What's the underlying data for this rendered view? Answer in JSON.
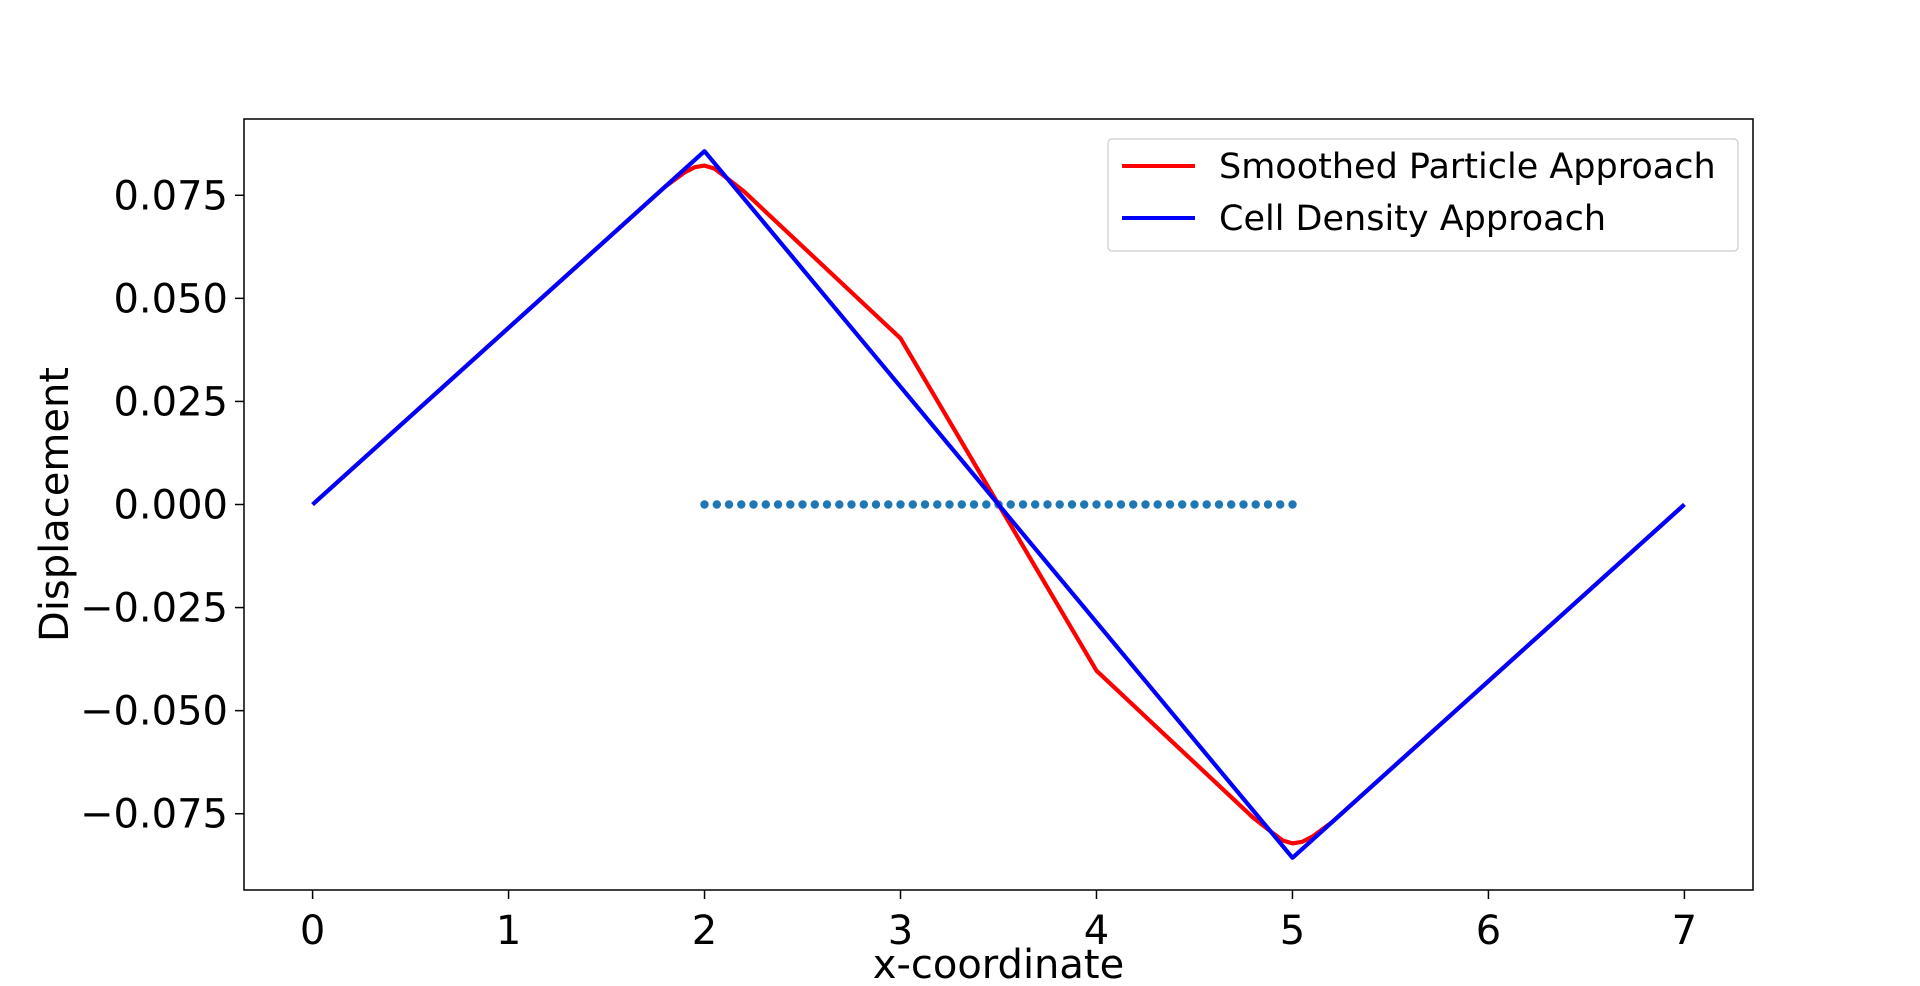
{
  "chart_data": {
    "type": "line",
    "title": "",
    "xlabel": "x-coordinate",
    "ylabel": "Displacement",
    "xlim": [
      -0.35,
      7.35
    ],
    "ylim": [
      -0.0935,
      0.0935
    ],
    "xticks": [
      0,
      1,
      2,
      3,
      4,
      5,
      6,
      7
    ],
    "xtick_labels": [
      "0",
      "1",
      "2",
      "3",
      "4",
      "5",
      "6",
      "7"
    ],
    "yticks": [
      0.075,
      0.05,
      0.025,
      0.0,
      -0.025,
      -0.05,
      -0.075
    ],
    "ytick_labels": [
      "0.075",
      "0.050",
      "0.025",
      "0.000",
      "−0.025",
      "−0.050",
      "−0.075"
    ],
    "grid": false,
    "legend_position": "top-right",
    "series": [
      {
        "name": "Smoothed Particle Approach",
        "color": "#ff0000",
        "x": [
          0,
          1,
          1.8,
          1.9,
          1.95,
          2.0,
          2.05,
          2.1,
          2.2,
          3.0,
          3.5,
          4.0,
          4.8,
          4.9,
          4.95,
          5.0,
          5.05,
          5.1,
          5.2,
          6.0,
          7.0
        ],
        "y": [
          0.0,
          0.04286,
          0.0771,
          0.0806,
          0.0818,
          0.0822,
          0.0815,
          0.0797,
          0.076,
          0.0403,
          0.0,
          -0.0403,
          -0.076,
          -0.0797,
          -0.0815,
          -0.0822,
          -0.0818,
          -0.0806,
          -0.0771,
          -0.04286,
          0.0
        ]
      },
      {
        "name": "Cell Density Approach",
        "color": "#0000ff",
        "x": [
          0,
          2,
          3.5,
          5,
          7
        ],
        "y": [
          0.0,
          0.0857,
          0.0,
          -0.0857,
          0.0
        ]
      }
    ],
    "scatter": {
      "color": "#1f77b4",
      "x": [
        2.0,
        2.0625,
        2.125,
        2.1875,
        2.25,
        2.3125,
        2.375,
        2.4375,
        2.5,
        2.5625,
        2.625,
        2.6875,
        2.75,
        2.8125,
        2.875,
        2.9375,
        3.0,
        3.0625,
        3.125,
        3.1875,
        3.25,
        3.3125,
        3.375,
        3.4375,
        3.5,
        3.5625,
        3.625,
        3.6875,
        3.75,
        3.8125,
        3.875,
        3.9375,
        4.0,
        4.0625,
        4.125,
        4.1875,
        4.25,
        4.3125,
        4.375,
        4.4375,
        4.5,
        4.5625,
        4.625,
        4.6875,
        4.75,
        4.8125,
        4.875,
        4.9375,
        5.0
      ],
      "y_all": 0.0
    }
  }
}
